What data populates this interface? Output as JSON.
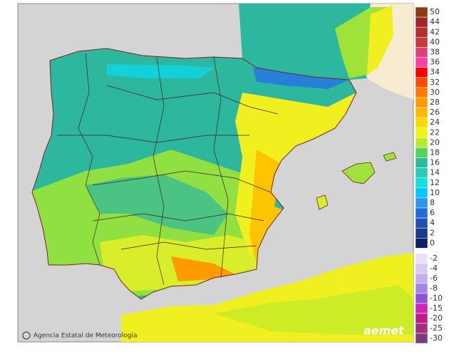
{
  "legend": {
    "entries": [
      {
        "label": 50,
        "color": "#8b3a12"
      },
      {
        "label": 44,
        "color": "#a0282a"
      },
      {
        "label": 42,
        "color": "#b23030"
      },
      {
        "label": 40,
        "color": "#c83a3a"
      },
      {
        "label": 38,
        "color": "#e0407a"
      },
      {
        "label": 36,
        "color": "#ff3fa0"
      },
      {
        "label": 34,
        "color": "#ff0000"
      },
      {
        "label": 32,
        "color": "#ff4a00"
      },
      {
        "label": 30,
        "color": "#ff7a00"
      },
      {
        "label": 28,
        "color": "#ff9a00"
      },
      {
        "label": 26,
        "color": "#ffb800"
      },
      {
        "label": 24,
        "color": "#ffd800"
      },
      {
        "label": 22,
        "color": "#f2f21a"
      },
      {
        "label": 20,
        "color": "#b6ea2c"
      },
      {
        "label": 18,
        "color": "#55d25a"
      },
      {
        "label": 16,
        "color": "#2fb89a"
      },
      {
        "label": 14,
        "color": "#2ccab8"
      },
      {
        "label": 12,
        "color": "#14e0e0"
      },
      {
        "label": 10,
        "color": "#00c8ff"
      },
      {
        "label": 8,
        "color": "#2d94f0"
      },
      {
        "label": 6,
        "color": "#1f6cd8"
      },
      {
        "label": 4,
        "color": "#1f4fb0"
      },
      {
        "label": 2,
        "color": "#1a3a8c"
      },
      {
        "label": 0,
        "color": "#0f1f66"
      }
    ],
    "negative_entries": [
      {
        "label": -2,
        "color": "#e8e2f6"
      },
      {
        "label": -4,
        "color": "#d8caf2"
      },
      {
        "label": -6,
        "color": "#c4aeec"
      },
      {
        "label": -8,
        "color": "#a982e2"
      },
      {
        "label": -10,
        "color": "#8c50da"
      },
      {
        "label": -15,
        "color": "#d225b4"
      },
      {
        "label": -20,
        "color": "#c01a8a"
      },
      {
        "label": -25,
        "color": "#a2307c"
      },
      {
        "label": -30,
        "color": "#7c3c7c"
      }
    ]
  },
  "credit": "Agencia Estatal de Meteorología",
  "logo": "aemet"
}
